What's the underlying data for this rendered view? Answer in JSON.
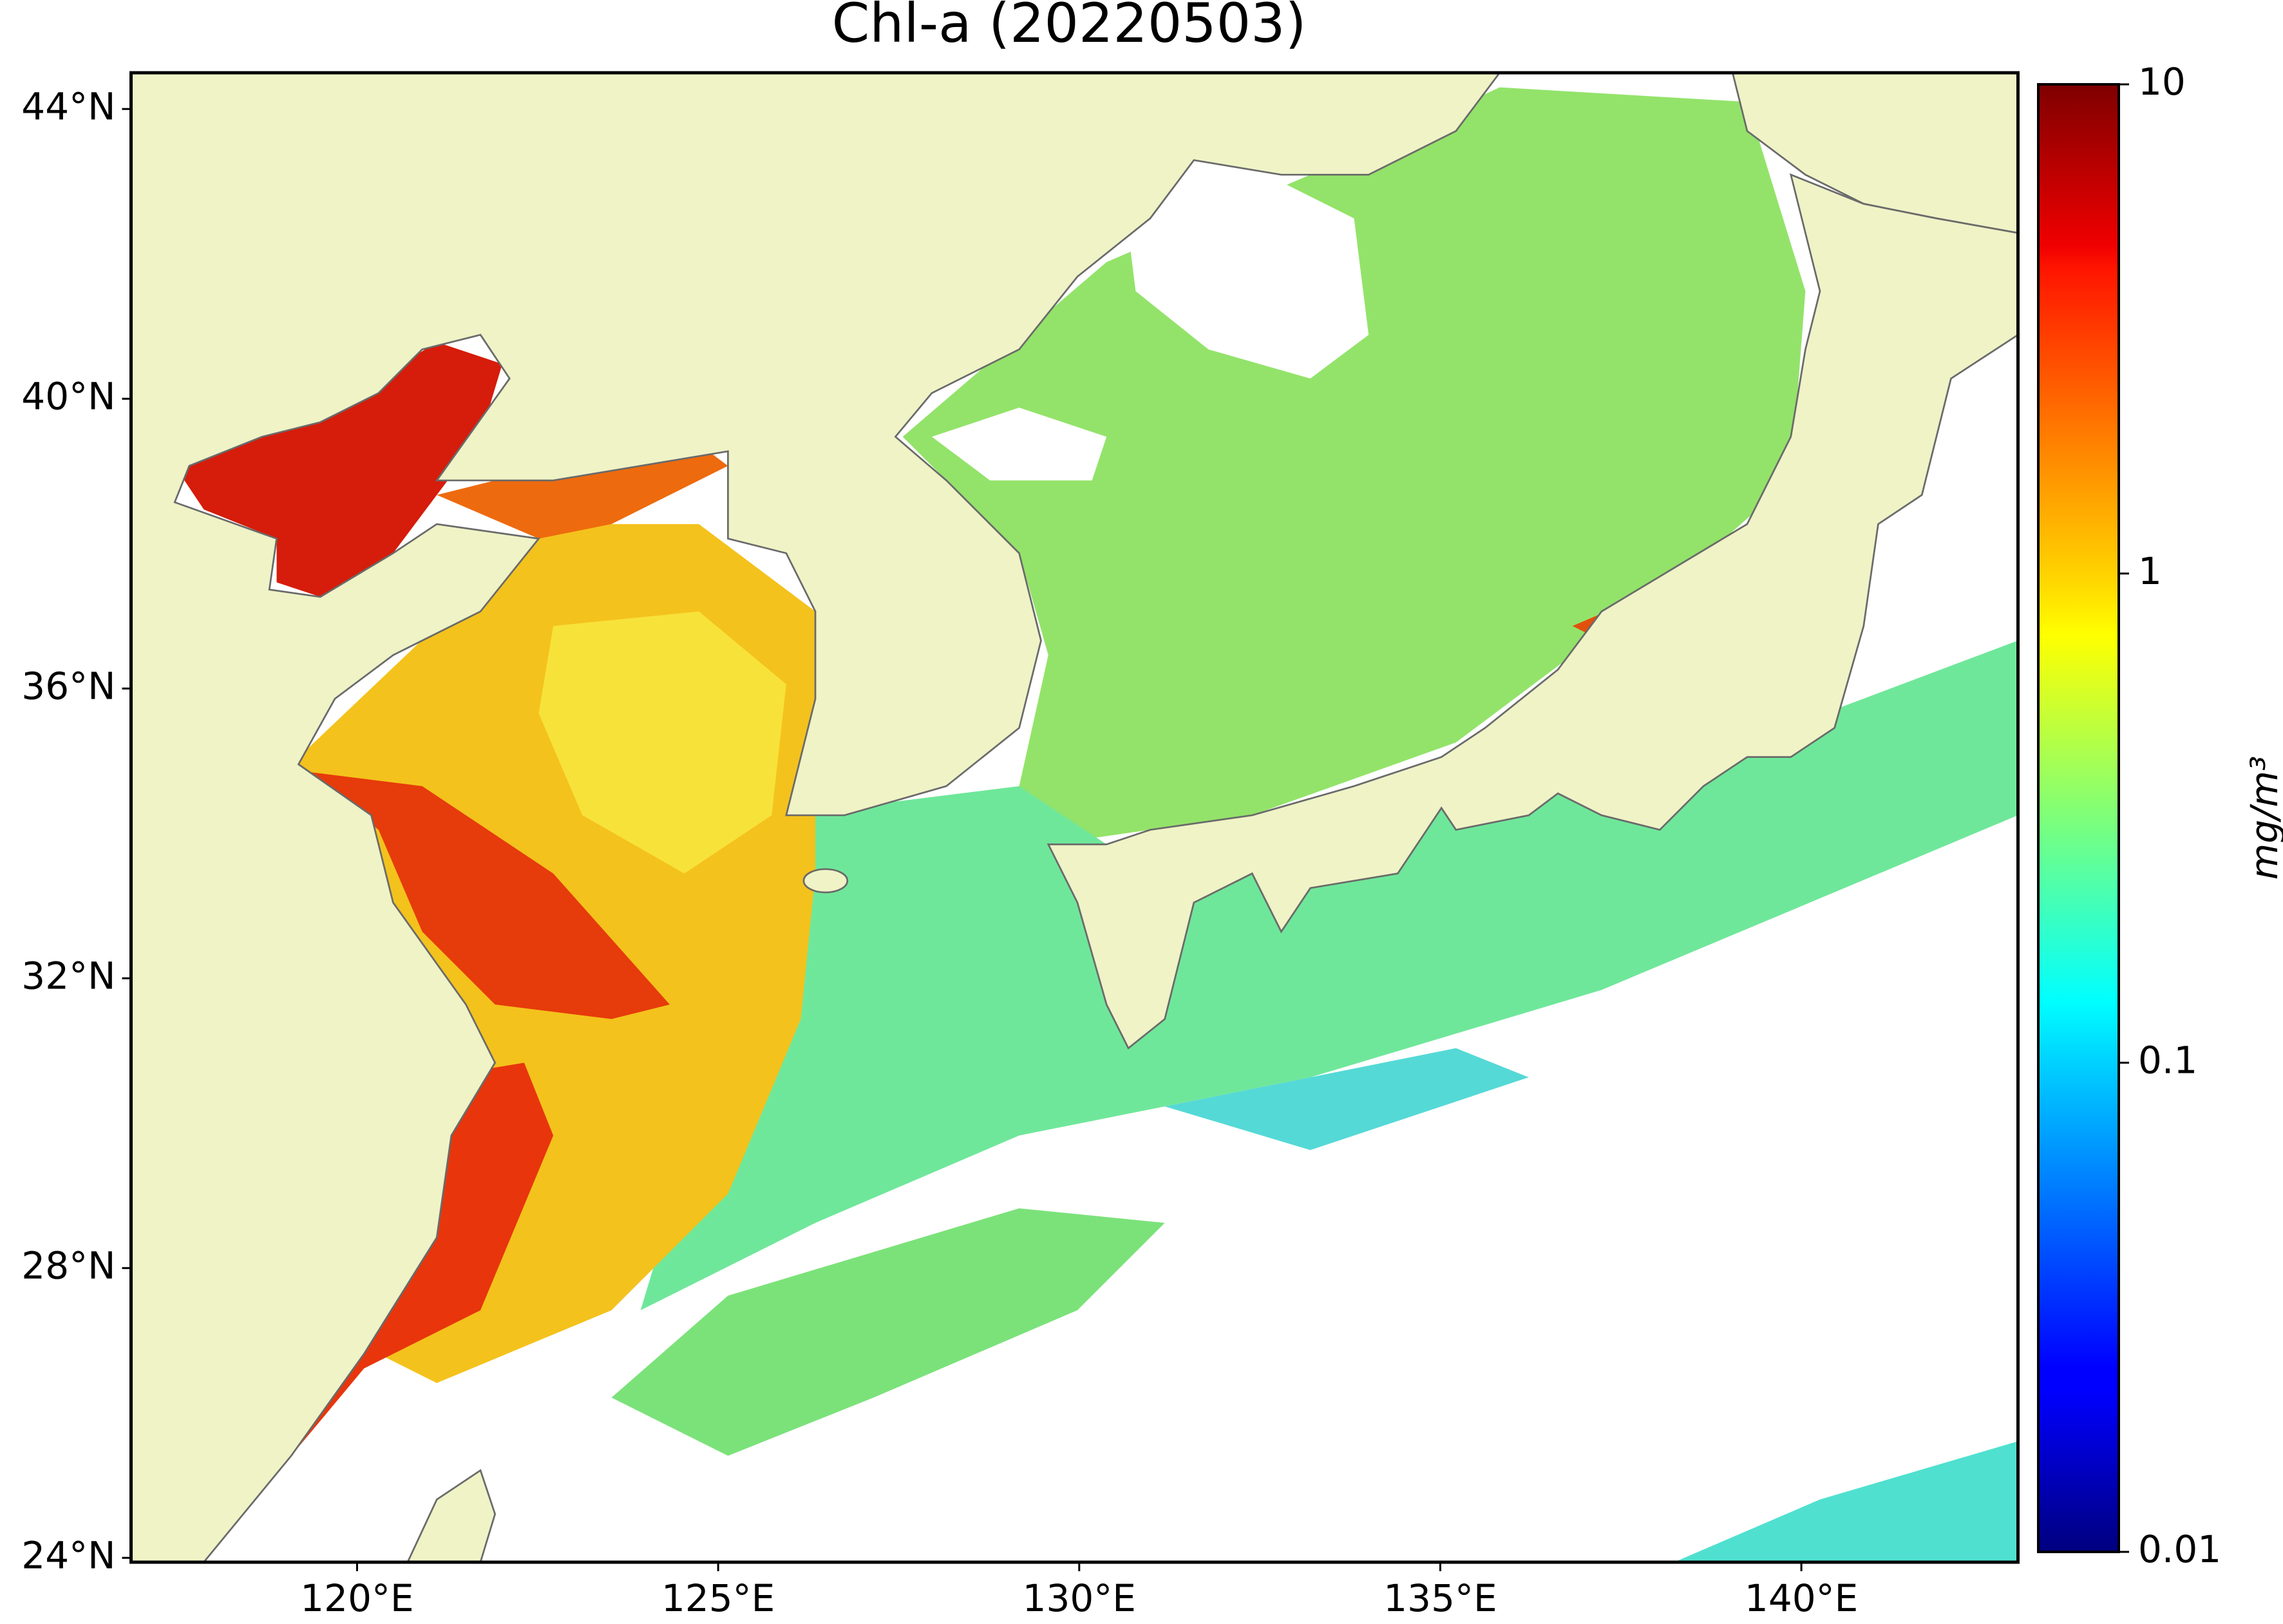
{
  "chart_data": {
    "type": "map",
    "title": "Chl-a (20220503)",
    "xlim": [
      116.87,
      143.0
    ],
    "ylim": [
      23.94,
      44.5
    ],
    "xticks": [
      {
        "value": 120,
        "label": "120°E"
      },
      {
        "value": 125,
        "label": "125°E"
      },
      {
        "value": 130,
        "label": "130°E"
      },
      {
        "value": 135,
        "label": "135°E"
      },
      {
        "value": 140,
        "label": "140°E"
      }
    ],
    "yticks": [
      {
        "value": 24,
        "label": "24°N"
      },
      {
        "value": 28,
        "label": "28°N"
      },
      {
        "value": 32,
        "label": "32°N"
      },
      {
        "value": 36,
        "label": "36°N"
      },
      {
        "value": 40,
        "label": "40°N"
      },
      {
        "value": 44,
        "label": "44°N"
      }
    ],
    "colorbar": {
      "label": "mg/m³",
      "lim": [
        0.01,
        10
      ],
      "ticks": [
        0.01,
        0.1,
        1,
        10
      ],
      "scale": "log",
      "colormap": "jet"
    }
  }
}
